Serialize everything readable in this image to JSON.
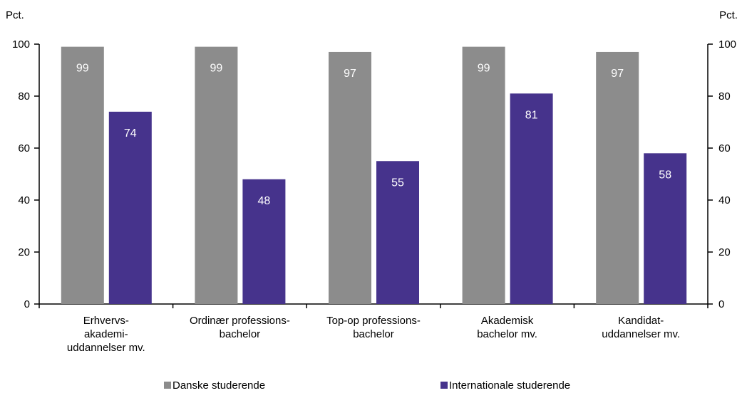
{
  "chart_data": {
    "type": "bar",
    "ylabel_left": "Pct.",
    "ylabel_right": "Pct.",
    "ylim": [
      0,
      100
    ],
    "yticks": [
      0,
      20,
      40,
      60,
      80,
      100
    ],
    "categories": [
      [
        "Erhvervs-",
        "akademi-",
        "uddannelser mv."
      ],
      [
        "Ordinær professions-",
        "bachelor"
      ],
      [
        "Top-op professions-",
        "bachelor"
      ],
      [
        "Akademisk",
        "bachelor mv."
      ],
      [
        "Kandidat-",
        "uddannelser mv."
      ]
    ],
    "series": [
      {
        "name": "Danske studerende",
        "color": "#8c8c8c",
        "values": [
          99,
          99,
          97,
          99,
          97
        ]
      },
      {
        "name": "Internationale studerende",
        "color": "#46338c",
        "values": [
          74,
          48,
          55,
          81,
          58
        ]
      }
    ],
    "data_labels": true,
    "grid": false,
    "legend": "bottom"
  }
}
